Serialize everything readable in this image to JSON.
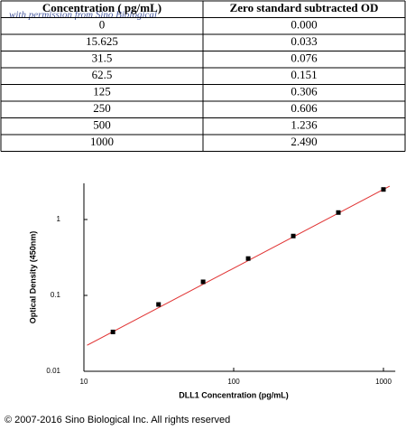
{
  "table": {
    "header": [
      "Concentration ( pg/mL)",
      "Zero standard subtracted OD"
    ],
    "rows": [
      [
        "0",
        "0.000"
      ],
      [
        "15.625",
        "0.033"
      ],
      [
        "31.5",
        "0.076"
      ],
      [
        "62.5",
        "0.151"
      ],
      [
        "125",
        "0.306"
      ],
      [
        "250",
        "0.606"
      ],
      [
        "500",
        "1.236"
      ],
      [
        "1000",
        "2.490"
      ]
    ]
  },
  "watermark": "with permission from Sino Biological",
  "chart_data": {
    "type": "scatter",
    "x_label": "DLL1 Concentration (pg/mL)",
    "y_label": "Optical Density (450nm)",
    "log_x": true,
    "log_y": true,
    "x": [
      15.625,
      31.5,
      62.5,
      125,
      250,
      500,
      1000
    ],
    "values": [
      0.033,
      0.076,
      0.151,
      0.306,
      0.606,
      1.236,
      2.49
    ],
    "color": "#000000",
    "fit": {
      "color": "#e03030",
      "x": [
        10.5,
        1100
      ],
      "values": [
        0.022,
        2.75
      ]
    },
    "xlim": [
      10,
      1200
    ],
    "xticks": [
      10,
      100,
      1000
    ],
    "ylim": [
      0.01,
      3
    ],
    "yticks": [
      0.01,
      0.1,
      1
    ]
  },
  "copyright": "© 2007-2016 Sino Biological Inc. All rights reserved"
}
